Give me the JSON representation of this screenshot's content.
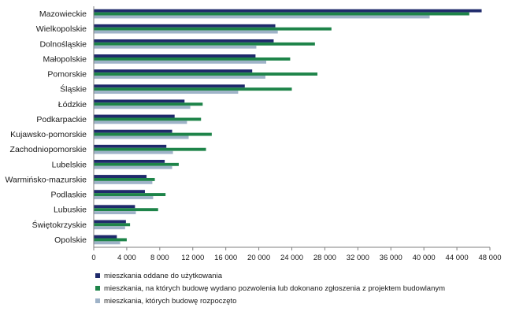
{
  "chart_data": {
    "type": "bar",
    "orientation": "horizontal",
    "title": "",
    "xlabel": "",
    "ylabel": "",
    "xlim": [
      0,
      48000
    ],
    "xticks": [
      0,
      4000,
      8000,
      12000,
      16000,
      20000,
      24000,
      28000,
      32000,
      36000,
      40000,
      44000,
      48000
    ],
    "xtick_labels": [
      "0",
      "4 000",
      "8 000",
      "12 000",
      "16 000",
      "20 000",
      "24 000",
      "28 000",
      "32 000",
      "36 000",
      "40 000",
      "44 000",
      "48 000"
    ],
    "grid": false,
    "legend_position": "bottom",
    "categories": [
      "Mazowieckie",
      "Wielkopolskie",
      "Dolnośląskie",
      "Małopolskie",
      "Pomorskie",
      "Śląskie",
      "Łódzkie",
      "Podkarpackie",
      "Kujawsko-pomorskie",
      "Zachodniopomorskie",
      "Lubelskie",
      "Warmińsko-mazurskie",
      "Podlaskie",
      "Lubuskie",
      "Świętokrzyskie",
      "Opolskie"
    ],
    "series": [
      {
        "name": "mieszkania oddane do użytkowania",
        "color": "#1f2a6b",
        "values": [
          47000,
          22000,
          21800,
          19600,
          19200,
          18300,
          11000,
          9800,
          9500,
          8800,
          8600,
          6400,
          6200,
          5000,
          3900,
          2800
        ]
      },
      {
        "name": "mieszkania, na których budowę wydano pozwolenia lub dokonano zgłoszenia z projektem budowlanym",
        "color": "#1e8449",
        "values": [
          45500,
          28800,
          26800,
          23800,
          27100,
          24000,
          13200,
          13000,
          14300,
          13600,
          10300,
          7400,
          8700,
          7800,
          4400,
          4000
        ]
      },
      {
        "name": "mieszkania, których budowę rozpoczęto",
        "color": "#9fb3c8",
        "values": [
          40700,
          22300,
          19700,
          20900,
          20800,
          17500,
          11700,
          11300,
          11500,
          9600,
          9500,
          7100,
          7200,
          5100,
          3800,
          3200
        ]
      }
    ]
  }
}
